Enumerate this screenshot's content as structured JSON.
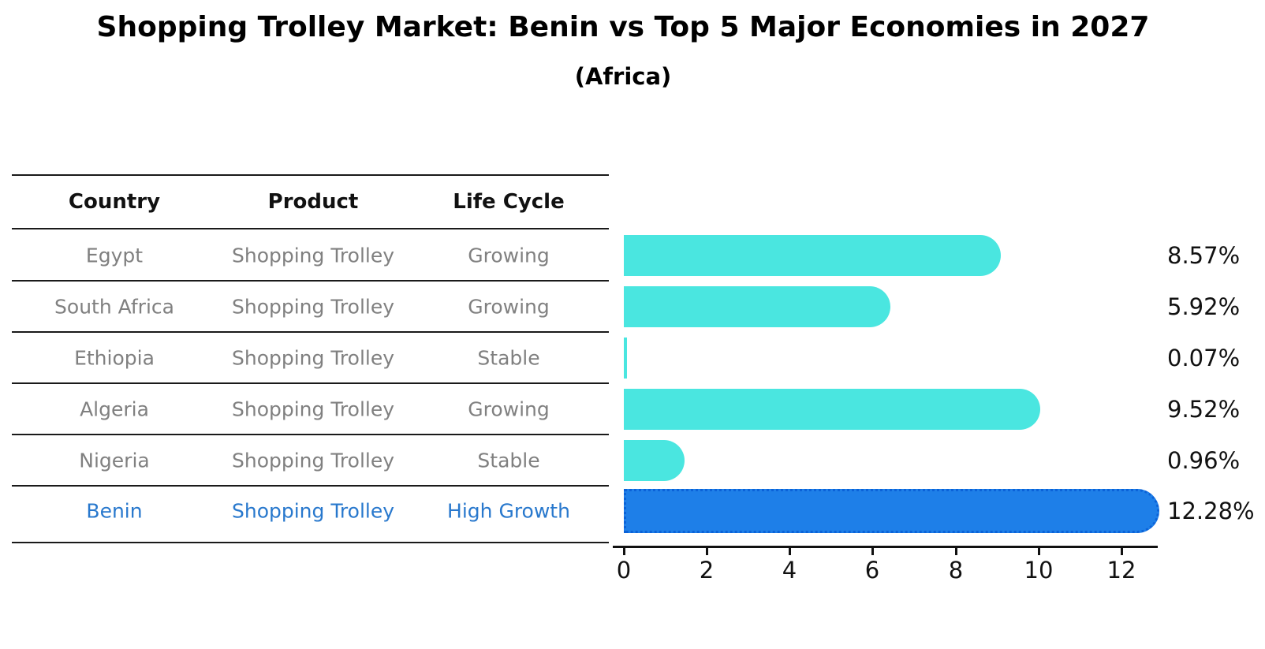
{
  "title": "Shopping Trolley Market: Benin vs Top 5 Major Economies in 2027",
  "subtitle": "(Africa)",
  "table": {
    "headers": [
      "Country",
      "Product",
      "Life Cycle"
    ],
    "rows": [
      {
        "country": "Egypt",
        "product": "Shopping Trolley",
        "life_cycle": "Growing"
      },
      {
        "country": "South Africa",
        "product": "Shopping Trolley",
        "life_cycle": "Growing"
      },
      {
        "country": "Ethiopia",
        "product": "Shopping Trolley",
        "life_cycle": "Stable"
      },
      {
        "country": "Algeria",
        "product": "Shopping Trolley",
        "life_cycle": "Growing"
      },
      {
        "country": "Nigeria",
        "product": "Shopping Trolley",
        "life_cycle": "Stable"
      },
      {
        "country": "Benin",
        "product": "Shopping Trolley",
        "life_cycle": "High Growth"
      }
    ]
  },
  "chart_data": {
    "type": "bar",
    "orientation": "horizontal",
    "title": "Shopping Trolley Market: Benin vs Top 5 Major Economies in 2027",
    "subtitle": "(Africa)",
    "categories": [
      "Egypt",
      "South Africa",
      "Ethiopia",
      "Algeria",
      "Nigeria",
      "Benin"
    ],
    "values": [
      8.57,
      5.92,
      0.07,
      9.52,
      0.96,
      12.28
    ],
    "value_labels": [
      "8.57%",
      "5.92%",
      "0.07%",
      "9.52%",
      "0.96%",
      "12.28%"
    ],
    "x_ticks": [
      0,
      2,
      4,
      6,
      8,
      10,
      12
    ],
    "xlim": [
      0,
      12.9
    ],
    "xlabel": "",
    "ylabel": "",
    "grid": false,
    "legend": false,
    "highlight_category": "Benin",
    "colors": {
      "default_bar": "#4AE6E0",
      "highlight_bar": "#1E7FE8",
      "highlight_bar_border": "#0B62D8",
      "highlight_text": "#2878CD",
      "body_text": "#808080",
      "header_text": "#111111",
      "axis": "#111111"
    }
  }
}
